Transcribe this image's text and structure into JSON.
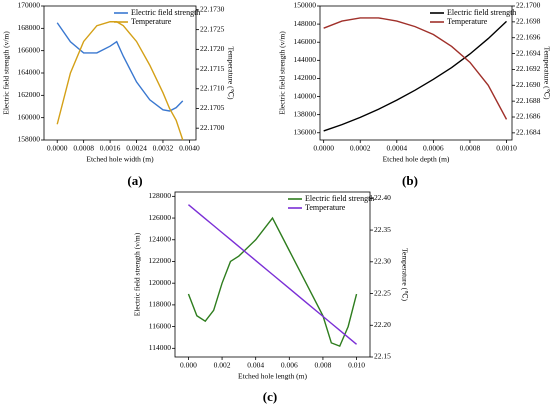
{
  "chart_data": [
    {
      "type": "line",
      "label": "(a)",
      "xlabel": "Etched hole width (m)",
      "ylabel": "Electric field strength (v/m)",
      "y2label": "Temperature (℃)",
      "x": [
        0,
        0.0004,
        0.0008,
        0.0012,
        0.0016,
        0.0018,
        0.002,
        0.0024,
        0.0028,
        0.0032,
        0.0034,
        0.0036,
        0.0038
      ],
      "series": [
        {
          "name": "Electric field strength",
          "color": "#3a78d0",
          "values": [
            168500,
            166800,
            165800,
            165800,
            166400,
            166800,
            165500,
            163200,
            161600,
            160700,
            160600,
            160900,
            161500
          ]
        },
        {
          "name": "Temperature",
          "color": "#d4a017",
          "axis": "y2",
          "values": [
            22.1701,
            22.1714,
            22.1722,
            22.1726,
            22.1727,
            22.1727,
            22.1726,
            22.1722,
            22.1716,
            22.1709,
            22.1705,
            22.1702,
            22.1697
          ]
        }
      ],
      "xlim": [
        -0.0004,
        0.0042
      ],
      "xticks": [
        {
          "value": 0,
          "label": "0.0000"
        },
        0.0008,
        0.0016,
        0.0024,
        0.0032,
        {
          "value": 0.004,
          "label": "0.0040"
        }
      ],
      "ylim": [
        158000,
        170000
      ],
      "yticks": [
        158000,
        160000,
        162000,
        164000,
        166000,
        168000,
        170000
      ],
      "y2lim": [
        22.1697,
        22.1731
      ],
      "y2ticks": [
        {
          "value": 22.17,
          "label": "22.1700"
        },
        22.1705,
        {
          "value": 22.171,
          "label": "22.1710"
        },
        22.1715,
        {
          "value": 22.172,
          "label": "22.1720"
        },
        22.1725,
        {
          "value": 22.173,
          "label": "22.1730"
        }
      ],
      "legend": "upper right"
    },
    {
      "type": "line",
      "label": "(b)",
      "xlabel": "Etched hole depth (m)",
      "ylabel": "Electric field strength (v/m)",
      "y2label": "Temperature (℃)",
      "x": [
        0,
        0.0001,
        0.0002,
        0.0003,
        0.0004,
        0.0005,
        0.0006,
        0.0007,
        0.0008,
        0.0009,
        0.001
      ],
      "series": [
        {
          "name": "Electric field strength",
          "color": "#000000",
          "values": [
            136200,
            136900,
            137700,
            138600,
            139600,
            140700,
            141900,
            143200,
            144700,
            146400,
            148300
          ]
        },
        {
          "name": "Temperature",
          "color": "#a0302a",
          "axis": "y2",
          "values": [
            22.16972,
            22.16981,
            22.16985,
            22.16985,
            22.16981,
            22.16974,
            22.16964,
            22.16949,
            22.16929,
            22.169,
            22.16857
          ]
        }
      ],
      "xlim": [
        -2e-05,
        0.00103
      ],
      "xticks": [
        {
          "value": 0,
          "label": "0.0000"
        },
        0.0002,
        0.0004,
        0.0006,
        0.0008,
        {
          "value": 0.001,
          "label": "0.0010"
        }
      ],
      "ylim": [
        135200,
        150000
      ],
      "yticks": [
        136000,
        138000,
        140000,
        142000,
        144000,
        146000,
        148000,
        150000
      ],
      "y2lim": [
        22.16831,
        22.17
      ],
      "y2ticks": [
        22.1684,
        22.1686,
        22.1688,
        {
          "value": 22.169,
          "label": "22.1690"
        },
        22.1692,
        22.1694,
        22.1696,
        22.1698,
        {
          "value": 22.17,
          "label": "22.1700"
        }
      ],
      "legend": "upper right"
    },
    {
      "type": "line",
      "label": "(c)",
      "xlabel": "Etched hole length (m)",
      "ylabel": "Electric field strength (v/m)",
      "y2label": "Temperature (℃)",
      "x": [
        0,
        0.0005,
        0.001,
        0.0015,
        0.002,
        0.0025,
        0.003,
        0.004,
        0.005,
        0.006,
        0.007,
        0.008,
        0.0085,
        0.009,
        0.0095,
        0.01
      ],
      "series": [
        {
          "name": "Electric field strength",
          "color": "#2e7d1e",
          "values": [
            119000,
            117000,
            116500,
            117500,
            120000,
            122000,
            122500,
            124000,
            126000,
            123000,
            120000,
            117000,
            114500,
            114200,
            116000,
            119000
          ]
        },
        {
          "name": "Temperature",
          "color": "#7b2fd6",
          "axis": "y2",
          "values": [
            22.39,
            22.379,
            22.368,
            22.357,
            22.346,
            22.335,
            22.324,
            22.302,
            22.28,
            22.258,
            22.236,
            22.214,
            22.203,
            22.192,
            22.181,
            22.17
          ]
        }
      ],
      "xlim": [
        -0.0008,
        0.0108
      ],
      "xticks": [
        {
          "value": 0,
          "label": "0.000"
        },
        0.002,
        0.004,
        0.006,
        0.008,
        {
          "value": 0.01,
          "label": "0.010"
        }
      ],
      "ylim": [
        113200,
        128400
      ],
      "yticks": [
        114000,
        116000,
        118000,
        120000,
        122000,
        124000,
        126000,
        128000
      ],
      "y2lim": [
        22.15,
        22.41
      ],
      "y2ticks": [
        22.15,
        {
          "value": 22.2,
          "label": "22.20"
        },
        22.25,
        {
          "value": 22.3,
          "label": "22.30"
        },
        22.35,
        {
          "value": 22.4,
          "label": "22.40"
        }
      ],
      "legend": "upper right"
    }
  ]
}
